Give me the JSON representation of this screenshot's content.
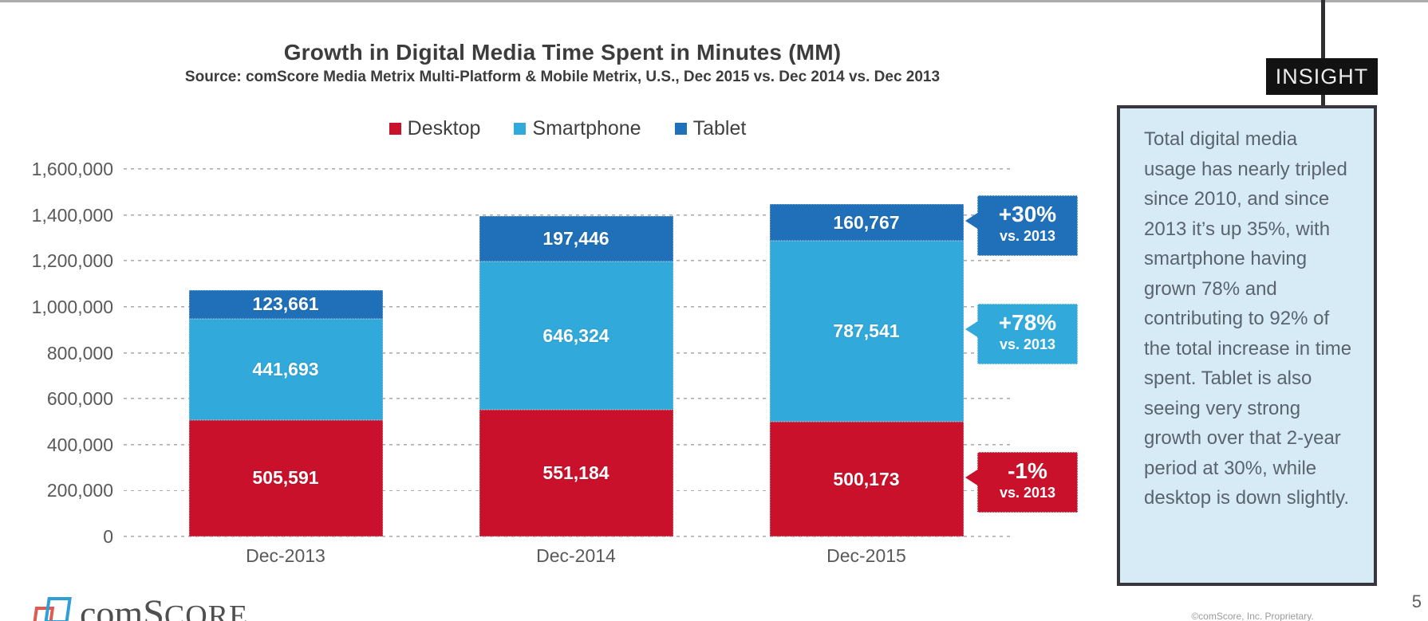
{
  "page": {
    "page_number": "5",
    "footer": "©comScore, Inc. Proprietary.",
    "top_border_color": "#ACACAC"
  },
  "insight": {
    "label": "INSIGHT",
    "text": "Total digital media usage has nearly tripled since 2010, and since 2013 it’s up 35%, with smartphone having grown 78% and contributing to 92% of the total increase in time spent. Tablet is also seeing very strong growth over that 2-year period at 30%, while desktop is down slightly.",
    "bg_color": "#D7EBF7",
    "border_color": "#36363C"
  },
  "logo": {
    "part1": "com",
    "part2": "S",
    "part3": "CORE"
  },
  "chart_data": {
    "type": "bar",
    "stacked": true,
    "title": "Growth in Digital Media Time Spent in Minutes (MM)",
    "source": "Source: comScore Media Metrix Multi-Platform & Mobile Metrix, U.S., Dec 2015 vs. Dec 2014 vs. Dec 2013",
    "categories": [
      "Dec-2013",
      "Dec-2014",
      "Dec-2015"
    ],
    "series": [
      {
        "name": "Desktop",
        "color": "#C9112B",
        "values": [
          505591,
          551184,
          500173
        ]
      },
      {
        "name": "Smartphone",
        "color": "#31A9DB",
        "values": [
          441693,
          646324,
          787541
        ]
      },
      {
        "name": "Tablet",
        "color": "#1F70B8",
        "values": [
          123661,
          197446,
          160767
        ]
      }
    ],
    "xlabel": "",
    "ylabel": "",
    "ylim": [
      0,
      1600000
    ],
    "ytick_step": 200000,
    "grid": "horizontal-dashed",
    "legend_position": "top",
    "value_labels": "inside-segments-white-bold",
    "annotations": [
      {
        "series": "Tablet",
        "category": "Dec-2015",
        "main": "+30%",
        "sub": "vs. 2013"
      },
      {
        "series": "Smartphone",
        "category": "Dec-2015",
        "main": "+78%",
        "sub": "vs. 2013"
      },
      {
        "series": "Desktop",
        "category": "Dec-2015",
        "main": "-1%",
        "sub": "vs. 2013"
      }
    ]
  }
}
